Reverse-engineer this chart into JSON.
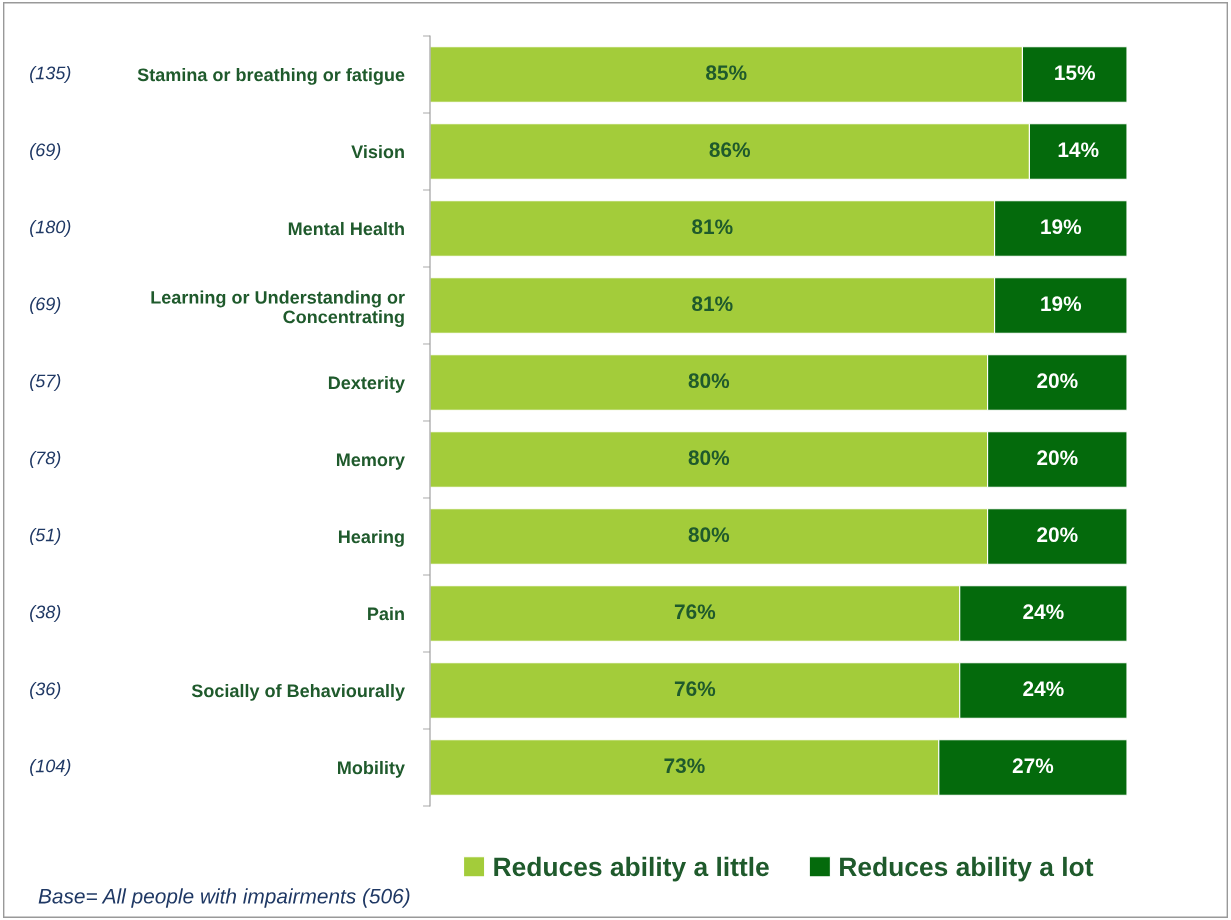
{
  "chart_data": {
    "type": "bar",
    "orientation": "horizontal",
    "stacked": true,
    "grid": false,
    "legend": "bottom",
    "categories": [
      "Stamina or breathing or fatigue",
      "Vision",
      "Mental Health",
      "Learning or Understanding or\nConcentrating",
      "Dexterity",
      "Memory",
      "Hearing",
      "Pain",
      "Socially of Behaviourally",
      "Mobility"
    ],
    "series": [
      {
        "name": "Reduces ability a little",
        "color": "#a3cc3a",
        "values": [
          85,
          86,
          81,
          81,
          80,
          80,
          80,
          76,
          76,
          73
        ],
        "value_labels": [
          "85%",
          "86%",
          "81%",
          "81%",
          "80%",
          "80%",
          "80%",
          "76%",
          "76%",
          "73%"
        ]
      },
      {
        "name": "Reduces ability a lot",
        "color": "#046a0c",
        "values": [
          15,
          14,
          19,
          19,
          20,
          20,
          20,
          24,
          24,
          27
        ],
        "value_labels": [
          "15%",
          "14%",
          "19%",
          "19%",
          "20%",
          "20%",
          "20%",
          "24%",
          "24%",
          "27%"
        ]
      }
    ],
    "annotations": [
      "(135)",
      "(69)",
      "(180)",
      "(69)",
      "(57)",
      "(78)",
      "(51)",
      "(38)",
      "(36)",
      "(104)",
      "Base= All people with impairments (506)"
    ]
  }
}
